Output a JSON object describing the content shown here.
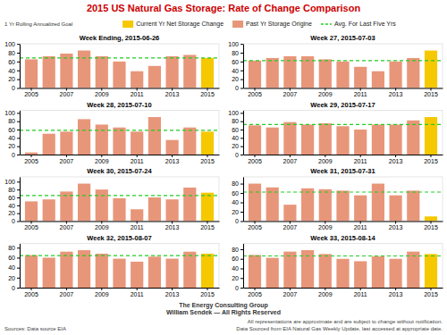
{
  "title": "2015 US Natural Gas Storage: Rate of Change Comparison",
  "annotations": [
    "1 Yr Rolling Annualized Goal",
    "Sources: Data source EIA",
    "The Energy Consulting Group\nWilliam Sendek — All Rights Reserved",
    "All representations are approximate and are subject to change without notification.\nData Sourced from EIA Natural Gas Weekly Update, last accessed at appropriate date."
  ],
  "series": [
    {
      "name": "Current Yr Net Storage Change",
      "color": "#f5c800"
    },
    {
      "name": "Past Yr Storage Origine",
      "color": "#e8967a"
    },
    {
      "name": "Avg. For Last Five Yrs",
      "type": "line",
      "line_style": "dashed",
      "color": "#22cc22"
    }
  ],
  "chart_data": [
    {
      "type": "bar",
      "title": "Week Ending, 2015-06-26",
      "categories": [
        "2005",
        null,
        "2007",
        null,
        "2009",
        null,
        "2011",
        null,
        "2013",
        null,
        "2015"
      ],
      "values": [
        65,
        72,
        78,
        85,
        72,
        60,
        38,
        50,
        72,
        75,
        68
      ],
      "colors": [
        "#e8967a",
        "#e8967a",
        "#e8967a",
        "#e8967a",
        "#e8967a",
        "#e8967a",
        "#e8967a",
        "#e8967a",
        "#e8967a",
        "#e8967a",
        "#f5c800"
      ],
      "avg": 68,
      "ylim": [
        0,
        100.3
      ],
      "yticks": [
        0,
        20,
        40,
        60,
        80,
        100
      ],
      "grid": false
    },
    {
      "type": "bar",
      "title": "Week 27, 2015-07-03",
      "categories": [
        "2005",
        null,
        "2007",
        null,
        "2009",
        null,
        "2011",
        null,
        "2013",
        null,
        "2015"
      ],
      "values": [
        62,
        68,
        72,
        72,
        65,
        60,
        48,
        38,
        60,
        68,
        85
      ],
      "colors": [
        "#e8967a",
        "#e8967a",
        "#e8967a",
        "#e8967a",
        "#e8967a",
        "#e8967a",
        "#e8967a",
        "#e8967a",
        "#e8967a",
        "#e8967a",
        "#f5c800"
      ],
      "avg": 62,
      "ylim": [
        0,
        100.3
      ],
      "yticks": [
        0,
        20,
        40,
        60,
        80,
        100
      ],
      "grid": false
    },
    {
      "type": "bar",
      "title": "Week 28, 2015-07-10",
      "categories": [
        "2005",
        null,
        "2007",
        null,
        "2009",
        null,
        "2011",
        null,
        "2013",
        null,
        "2015"
      ],
      "values": [
        5,
        50,
        55,
        85,
        72,
        65,
        55,
        90,
        35,
        65,
        55
      ],
      "colors": [
        "#e8967a",
        "#e8967a",
        "#e8967a",
        "#e8967a",
        "#e8967a",
        "#e8967a",
        "#e8967a",
        "#e8967a",
        "#e8967a",
        "#e8967a",
        "#f5c800"
      ],
      "avg": 58,
      "ylim": [
        0,
        106.2
      ],
      "yticks": [
        0,
        20,
        40,
        60,
        80,
        100
      ],
      "grid": false
    },
    {
      "type": "bar",
      "title": "Week 29, 2015-07-17",
      "categories": [
        "2005",
        null,
        "2007",
        null,
        "2009",
        null,
        "2011",
        null,
        "2013",
        null,
        "2015"
      ],
      "values": [
        70,
        65,
        78,
        72,
        75,
        68,
        60,
        72,
        72,
        82,
        90
      ],
      "colors": [
        "#e8967a",
        "#e8967a",
        "#e8967a",
        "#e8967a",
        "#e8967a",
        "#e8967a",
        "#e8967a",
        "#e8967a",
        "#e8967a",
        "#e8967a",
        "#f5c800"
      ],
      "avg": 72,
      "ylim": [
        0,
        106.2
      ],
      "yticks": [
        0,
        20,
        40,
        60,
        80,
        100
      ],
      "grid": false
    },
    {
      "type": "bar",
      "title": "Week 30, 2015-07-24",
      "categories": [
        "2005",
        null,
        "2007",
        null,
        "2009",
        null,
        "2011",
        null,
        "2013",
        null,
        "2015"
      ],
      "values": [
        50,
        55,
        75,
        95,
        80,
        58,
        30,
        60,
        55,
        85,
        72
      ],
      "colors": [
        "#e8967a",
        "#e8967a",
        "#e8967a",
        "#e8967a",
        "#e8967a",
        "#e8967a",
        "#e8967a",
        "#e8967a",
        "#e8967a",
        "#e8967a",
        "#f5c800"
      ],
      "avg": 65,
      "ylim": [
        0,
        112.1
      ],
      "yticks": [
        0,
        20,
        40,
        60,
        80,
        100
      ],
      "grid": false
    },
    {
      "type": "bar",
      "title": "Week 31, 2015-07-31",
      "categories": [
        "2005",
        null,
        "2007",
        null,
        "2009",
        null,
        "2011",
        null,
        "2013",
        null,
        "2015"
      ],
      "values": [
        80,
        72,
        35,
        70,
        68,
        65,
        55,
        80,
        55,
        65,
        10
      ],
      "colors": [
        "#e8967a",
        "#e8967a",
        "#e8967a",
        "#e8967a",
        "#e8967a",
        "#e8967a",
        "#e8967a",
        "#e8967a",
        "#e8967a",
        "#e8967a",
        "#f5c800"
      ],
      "avg": 62,
      "ylim": [
        0,
        94.4
      ],
      "yticks": [
        0,
        20,
        40,
        60,
        80
      ],
      "grid": false
    },
    {
      "type": "bar",
      "title": "Week 32, 2015-08-07",
      "categories": [
        "2005",
        null,
        "2007",
        null,
        "2009",
        null,
        "2011",
        null,
        "2013",
        null,
        "2015"
      ],
      "values": [
        65,
        60,
        72,
        75,
        68,
        58,
        52,
        62,
        58,
        72,
        68
      ],
      "colors": [
        "#e8967a",
        "#e8967a",
        "#e8967a",
        "#e8967a",
        "#e8967a",
        "#e8967a",
        "#e8967a",
        "#e8967a",
        "#e8967a",
        "#e8967a",
        "#f5c800"
      ],
      "avg": 64,
      "ylim": [
        0,
        88.5
      ],
      "yticks": [
        0,
        20,
        40,
        60,
        80
      ],
      "grid": false
    },
    {
      "type": "bar",
      "title": "Week 33, 2015-08-14",
      "categories": [
        "2005",
        null,
        "2007",
        null,
        "2009",
        null,
        "2011",
        null,
        "2013",
        null,
        "2015"
      ],
      "values": [
        68,
        62,
        75,
        78,
        70,
        60,
        55,
        65,
        60,
        75,
        70
      ],
      "colors": [
        "#e8967a",
        "#e8967a",
        "#e8967a",
        "#e8967a",
        "#e8967a",
        "#e8967a",
        "#e8967a",
        "#e8967a",
        "#e8967a",
        "#e8967a",
        "#f5c800"
      ],
      "avg": 66,
      "ylim": [
        0,
        92.04
      ],
      "yticks": [
        0,
        20,
        40,
        60,
        80
      ],
      "grid": false
    }
  ]
}
